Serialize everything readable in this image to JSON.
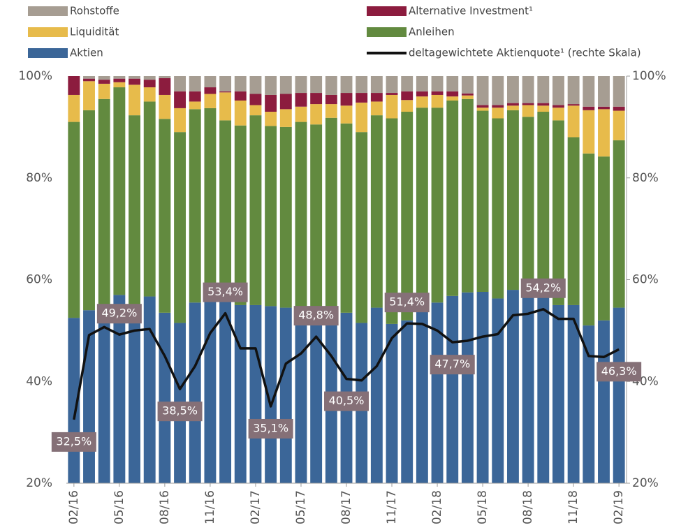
{
  "chart_data": {
    "type": "stacked-bar-line",
    "categories": [
      "02/16",
      null,
      null,
      "05/16",
      null,
      null,
      "08/16",
      null,
      null,
      "11/16",
      null,
      null,
      "02/17",
      null,
      null,
      "05/17",
      null,
      null,
      "08/17",
      null,
      null,
      "11/17",
      null,
      null,
      "02/18",
      null,
      null,
      "05/18",
      null,
      null,
      "08/18",
      null,
      null,
      "11/18",
      null,
      null,
      "02/19"
    ],
    "ylim": [
      20,
      100
    ],
    "yticks": [
      {
        "value": 20,
        "label": "20%"
      },
      {
        "value": 40,
        "label": "40%"
      },
      {
        "value": 60,
        "label": "60%"
      },
      {
        "value": 80,
        "label": "80%"
      },
      {
        "value": 100,
        "label": "100%"
      }
    ],
    "y2lim": [
      20,
      100
    ],
    "y2ticks": [
      {
        "value": 20,
        "label": "20%"
      },
      {
        "value": 40,
        "label": "40%"
      },
      {
        "value": 60,
        "label": "60%"
      },
      {
        "value": 80,
        "label": "80%"
      },
      {
        "value": 100,
        "label": "100%"
      }
    ],
    "series": [
      {
        "name": "Aktien",
        "color": "#3b6698",
        "values": [
          52.5,
          54,
          55,
          57,
          55,
          56.7,
          53.5,
          51.5,
          55.5,
          58.5,
          58.7,
          55,
          55,
          54.8,
          54.5,
          54.3,
          53.5,
          54,
          53.5,
          51.5,
          54.5,
          51.3,
          52,
          56,
          55.5,
          56.8,
          57.5,
          57.6,
          56.3,
          58,
          57,
          56.7,
          55,
          55,
          51,
          52,
          54.5
        ]
      },
      {
        "name": "Anleihen",
        "color": "#628a3f",
        "values": [
          38.5,
          39.3,
          40.5,
          40.8,
          37.3,
          38.3,
          38.1,
          37.5,
          38,
          35.2,
          32.6,
          35.3,
          37.3,
          35.4,
          35.5,
          36.7,
          37,
          37.8,
          37.2,
          37.5,
          37.8,
          40.4,
          41,
          37.8,
          38.3,
          38.4,
          38,
          35.6,
          35.4,
          35.3,
          35,
          36.3,
          36.3,
          33,
          33.8,
          32.2,
          32.9
        ]
      },
      {
        "name": "Liquidität",
        "color": "#e7bb4b",
        "values": [
          5.3,
          5.7,
          3,
          1,
          6,
          2.8,
          4.7,
          4.7,
          1.5,
          2.8,
          5.5,
          4.9,
          2,
          2.8,
          3.5,
          3,
          4,
          2.7,
          3.5,
          5.8,
          2.7,
          4.6,
          2.3,
          2.2,
          2.5,
          0.8,
          0.7,
          0.6,
          2.1,
          0.9,
          2.3,
          1.2,
          2.5,
          6.2,
          8.5,
          9.3,
          5.8
        ]
      },
      {
        "name": "Alternative Investment¹",
        "color": "#8c1c3e",
        "values": [
          3.7,
          0.5,
          0.8,
          0.7,
          1.2,
          1.5,
          3.3,
          3.3,
          2,
          1.3,
          0.2,
          1.8,
          2.2,
          3.3,
          3,
          2.7,
          2.2,
          1.8,
          2.5,
          1.9,
          1.7,
          0.4,
          1.7,
          1,
          0.7,
          1,
          0.4,
          0.5,
          0.5,
          0.5,
          0.4,
          0.5,
          0.5,
          0.3,
          0.7,
          0.5,
          0.8
        ]
      },
      {
        "name": "Rohstoffe",
        "color": "#a69d92",
        "values": [
          0,
          0.5,
          0.7,
          0.5,
          0.5,
          0.7,
          0.4,
          3,
          3,
          2.2,
          3,
          3,
          3.5,
          3.7,
          3.5,
          3.3,
          3.3,
          3.7,
          3.3,
          3.3,
          3.3,
          3.3,
          3,
          3,
          3,
          3,
          3.4,
          5.7,
          5.7,
          5.3,
          5.3,
          5.3,
          5.7,
          5.5,
          6,
          6,
          6
        ]
      },
      {
        "name": "deltagewichtete Aktienquote¹ (rechte Skala)",
        "type": "line",
        "axis": "y2",
        "color": "#111111",
        "values": [
          32.5,
          49.1,
          50.7,
          49.2,
          50,
          50.3,
          45,
          38.5,
          43,
          49.5,
          53.4,
          46.5,
          46.5,
          35.1,
          43.5,
          45.5,
          48.8,
          45,
          40.5,
          40.2,
          43,
          48.5,
          51.4,
          51.3,
          50,
          47.7,
          48,
          48.8,
          49.3,
          53,
          53.3,
          54.2,
          52.3,
          52.3,
          45,
          44.8,
          46.3
        ],
        "value_labels": [
          "32,5%",
          null,
          null,
          "49,2%",
          null,
          null,
          null,
          "38,5%",
          null,
          null,
          "53,4%",
          null,
          null,
          "35,1%",
          null,
          null,
          "48,8%",
          null,
          "40,5%",
          null,
          null,
          null,
          "51,4%",
          null,
          null,
          "47,7%",
          null,
          null,
          null,
          null,
          null,
          "54,2%",
          null,
          null,
          null,
          null,
          "46,3%"
        ]
      }
    ]
  }
}
